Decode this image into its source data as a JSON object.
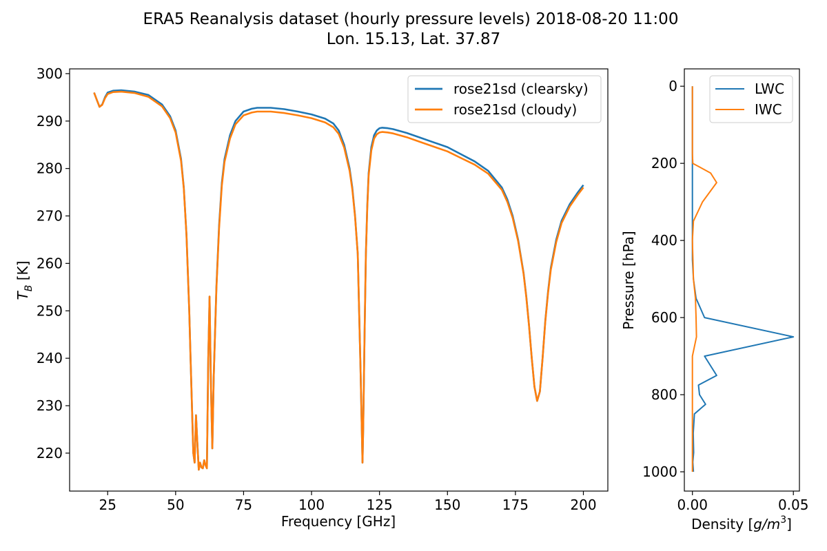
{
  "figure": {
    "title_line1": "ERA5 Reanalysis dataset (hourly pressure levels) 2018-08-20 11:00",
    "title_line2": "Lon. 15.13, Lat. 37.87"
  },
  "colors": {
    "blue": "#1f77b4",
    "orange": "#ff7f0e"
  },
  "chart_data": [
    {
      "type": "line",
      "xlabel": "Frequency [GHz]",
      "ylabel": "T_B [K]",
      "ylabel_main": "T",
      "ylabel_sub": "B",
      "ylabel_unit": " [K]",
      "xlim": [
        11,
        209
      ],
      "ylim": [
        212,
        301
      ],
      "xticks": [
        25,
        50,
        75,
        100,
        125,
        150,
        175,
        200
      ],
      "yticks": [
        220,
        230,
        240,
        250,
        260,
        270,
        280,
        290,
        300
      ],
      "legend_position": "top-right",
      "series": [
        {
          "name": "rose21sd (clearsky)",
          "color": "#1f77b4",
          "x": [
            20,
            21,
            22,
            23,
            24,
            25,
            27,
            30,
            35,
            40,
            45,
            48,
            50,
            52,
            53,
            54,
            55,
            55.5,
            56,
            56.5,
            57,
            57.5,
            58,
            58.5,
            59,
            59.5,
            60,
            60.5,
            61,
            61.5,
            62,
            62.5,
            63,
            63.5,
            64,
            65,
            66,
            67,
            68,
            70,
            72,
            75,
            78,
            80,
            85,
            90,
            95,
            100,
            105,
            108,
            110,
            112,
            114,
            115,
            116,
            117,
            117.5,
            118,
            118.5,
            118.75,
            119,
            119.5,
            120,
            120.5,
            121,
            122,
            123,
            124,
            125,
            126,
            128,
            130,
            135,
            140,
            145,
            150,
            155,
            160,
            165,
            170,
            172,
            174,
            176,
            178,
            179,
            180,
            181,
            182,
            183,
            184,
            185,
            186,
            187,
            188,
            190,
            192,
            195,
            198,
            200
          ],
          "y": [
            296,
            294.5,
            293,
            293.5,
            295,
            296,
            296.4,
            296.5,
            296.2,
            295.5,
            293.5,
            291,
            288,
            282,
            276,
            266,
            250,
            240,
            230,
            220,
            218,
            228,
            222,
            216.5,
            218,
            217,
            216.8,
            218.5,
            217.5,
            216.8,
            240,
            253,
            234,
            221,
            236,
            255,
            268,
            277,
            282,
            287,
            290,
            292,
            292.6,
            292.8,
            292.8,
            292.5,
            292,
            291.4,
            290.5,
            289.5,
            288,
            285,
            280,
            276,
            270,
            262,
            250,
            238,
            225,
            218,
            225,
            245,
            262,
            272,
            279,
            284.5,
            287,
            288,
            288.5,
            288.6,
            288.5,
            288.3,
            287.5,
            286.5,
            285.5,
            284.5,
            283,
            281.5,
            279.5,
            276,
            273.5,
            270,
            265,
            258,
            253,
            247,
            240,
            234,
            231,
            233,
            240,
            248,
            254,
            259,
            265,
            269,
            272.5,
            275,
            276.5
          ]
        },
        {
          "name": "rose21sd (cloudy)",
          "color": "#ff7f0e",
          "x": [
            20,
            21,
            22,
            23,
            24,
            25,
            27,
            30,
            35,
            40,
            45,
            48,
            50,
            52,
            53,
            54,
            55,
            55.5,
            56,
            56.5,
            57,
            57.5,
            58,
            58.5,
            59,
            59.5,
            60,
            60.5,
            61,
            61.5,
            62,
            62.5,
            63,
            63.5,
            64,
            65,
            66,
            67,
            68,
            70,
            72,
            75,
            78,
            80,
            85,
            90,
            95,
            100,
            105,
            108,
            110,
            112,
            114,
            115,
            116,
            117,
            117.5,
            118,
            118.5,
            118.75,
            119,
            119.5,
            120,
            120.5,
            121,
            122,
            123,
            124,
            125,
            126,
            128,
            130,
            135,
            140,
            145,
            150,
            155,
            160,
            165,
            170,
            172,
            174,
            176,
            178,
            179,
            180,
            181,
            182,
            183,
            184,
            185,
            186,
            187,
            188,
            190,
            192,
            195,
            198,
            200
          ],
          "y": [
            296,
            294.5,
            293,
            293.4,
            294.8,
            295.7,
            296.1,
            296.2,
            295.9,
            295.1,
            293.1,
            290.6,
            287.6,
            281.6,
            275.8,
            265.9,
            250,
            240,
            230,
            220,
            218,
            228,
            222,
            216.5,
            218,
            217,
            216.8,
            218.5,
            217.5,
            216.8,
            240,
            253,
            234,
            221,
            236,
            254.6,
            267.4,
            276.4,
            281.4,
            286.3,
            289.3,
            291.2,
            291.8,
            292,
            292,
            291.7,
            291.2,
            290.6,
            289.7,
            288.7,
            287.3,
            284.4,
            279.5,
            275.6,
            269.8,
            262,
            250,
            238,
            225,
            218,
            225,
            245,
            261.8,
            271.6,
            278.5,
            283.8,
            286.3,
            287.2,
            287.6,
            287.7,
            287.6,
            287.4,
            286.6,
            285.6,
            284.6,
            283.6,
            282.2,
            280.8,
            278.9,
            275.5,
            273,
            269.6,
            264.7,
            257.8,
            252.8,
            246.9,
            240,
            234,
            231,
            233,
            240,
            247.8,
            253.7,
            258.6,
            264.5,
            268.5,
            272,
            274.5,
            276
          ]
        }
      ]
    },
    {
      "type": "line",
      "xlabel": "Density [g/m^3]",
      "xlabel_main": "Density [",
      "xlabel_unit_g": "g",
      "xlabel_unit_m": "/m",
      "xlabel_sup": "3",
      "xlabel_close": "]",
      "ylabel": "Pressure [hPa]",
      "xlim": [
        -0.004,
        0.053
      ],
      "ylim": [
        1050,
        -45
      ],
      "xticks": [
        0.0,
        0.05
      ],
      "xtick_labels": [
        "0.00",
        "0.05"
      ],
      "yticks": [
        0,
        200,
        400,
        600,
        800,
        1000
      ],
      "legend_position": "top-right",
      "series": [
        {
          "name": "LWC",
          "color": "#1f77b4",
          "y": [
            0,
            100,
            200,
            300,
            400,
            450,
            500,
            550,
            600,
            650,
            700,
            750,
            775,
            800,
            825,
            850,
            900,
            950,
            975,
            1000
          ],
          "x": [
            0,
            0,
            0,
            0,
            0,
            0,
            0.0005,
            0.0018,
            0.006,
            0.05,
            0.006,
            0.012,
            0.003,
            0.0035,
            0.0065,
            0.001,
            0.0004,
            0.0006,
            0.0002,
            0.0005
          ]
        },
        {
          "name": "IWC",
          "color": "#ff7f0e",
          "y": [
            0,
            100,
            175,
            200,
            225,
            250,
            300,
            350,
            400,
            500,
            550,
            600,
            650,
            700,
            750,
            800,
            850,
            900,
            950,
            1000
          ],
          "x": [
            0,
            0,
            0,
            0.0002,
            0.009,
            0.012,
            0.005,
            0.0005,
            0,
            0.0005,
            0.0015,
            0.0018,
            0.002,
            0,
            0,
            0,
            0,
            0,
            0,
            0
          ]
        }
      ]
    }
  ]
}
